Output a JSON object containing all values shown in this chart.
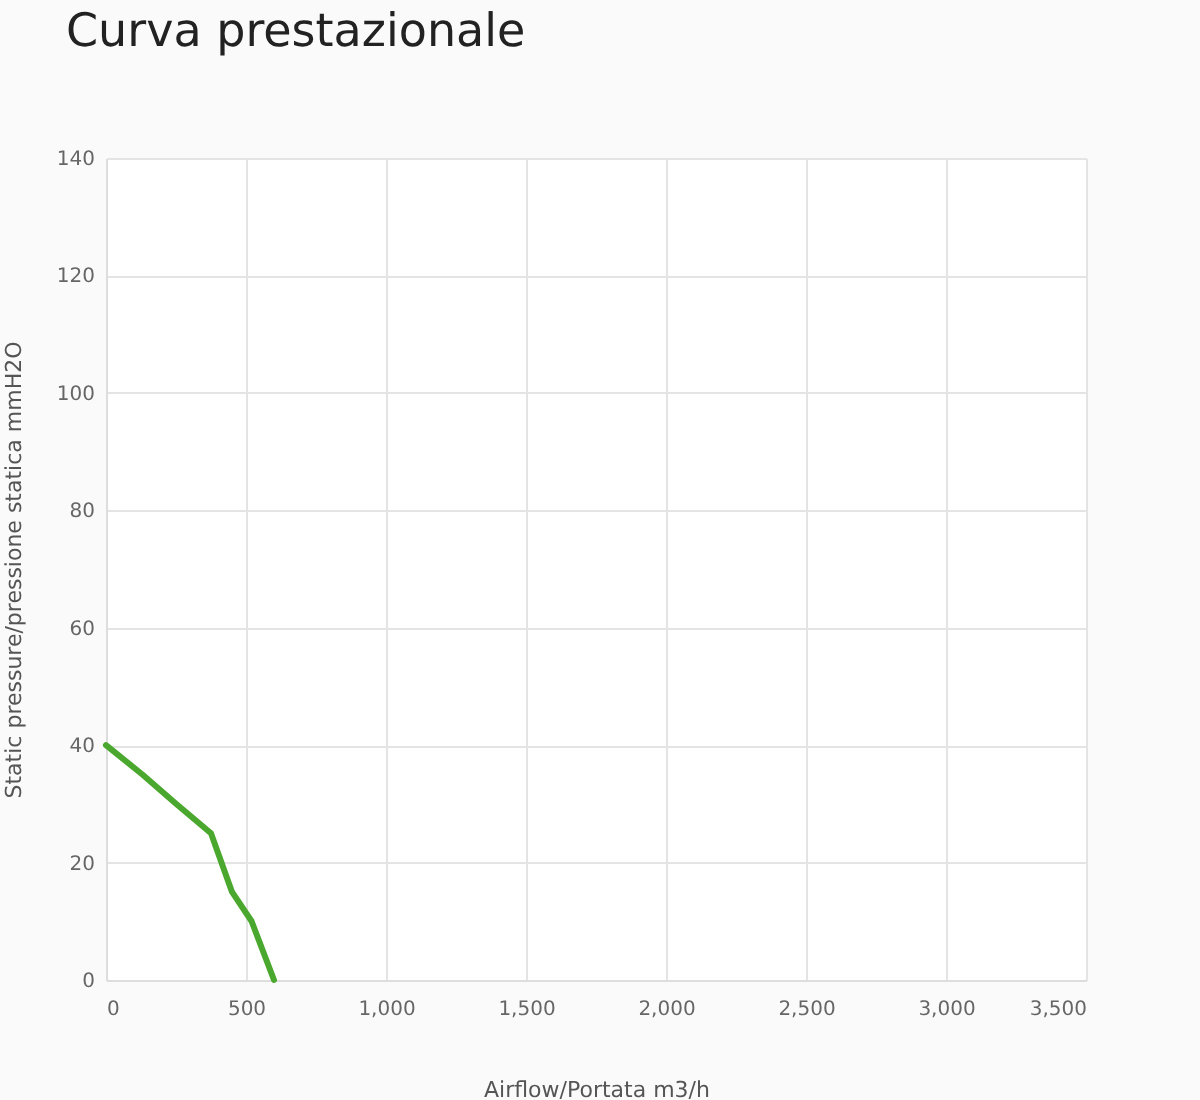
{
  "chart_data": {
    "type": "line",
    "title": "Curva prestazionale",
    "xlabel": "Airflow/Portata m3/h",
    "ylabel": "Static pressure/pressione statica mmH2O",
    "x": [
      0,
      130,
      250,
      375,
      450,
      520,
      600
    ],
    "series": [
      {
        "color": "#4aa82e",
        "values": [
          40,
          35,
          30,
          25,
          15,
          10,
          0
        ]
      }
    ],
    "xlim": [
      0,
      3500
    ],
    "xticks": [
      0,
      500,
      {
        "value": 1000,
        "label": "1,000"
      },
      {
        "value": 1500,
        "label": "1,500"
      },
      {
        "value": 2000,
        "label": "2,000"
      },
      {
        "value": 2500,
        "label": "2,500"
      },
      {
        "value": 3000,
        "label": "3,000"
      },
      {
        "value": 3500,
        "label": "3,500"
      }
    ],
    "ylim": [
      0,
      140
    ],
    "yticks": [
      0,
      20,
      40,
      60,
      80,
      100,
      120,
      140
    ],
    "grid": true
  }
}
